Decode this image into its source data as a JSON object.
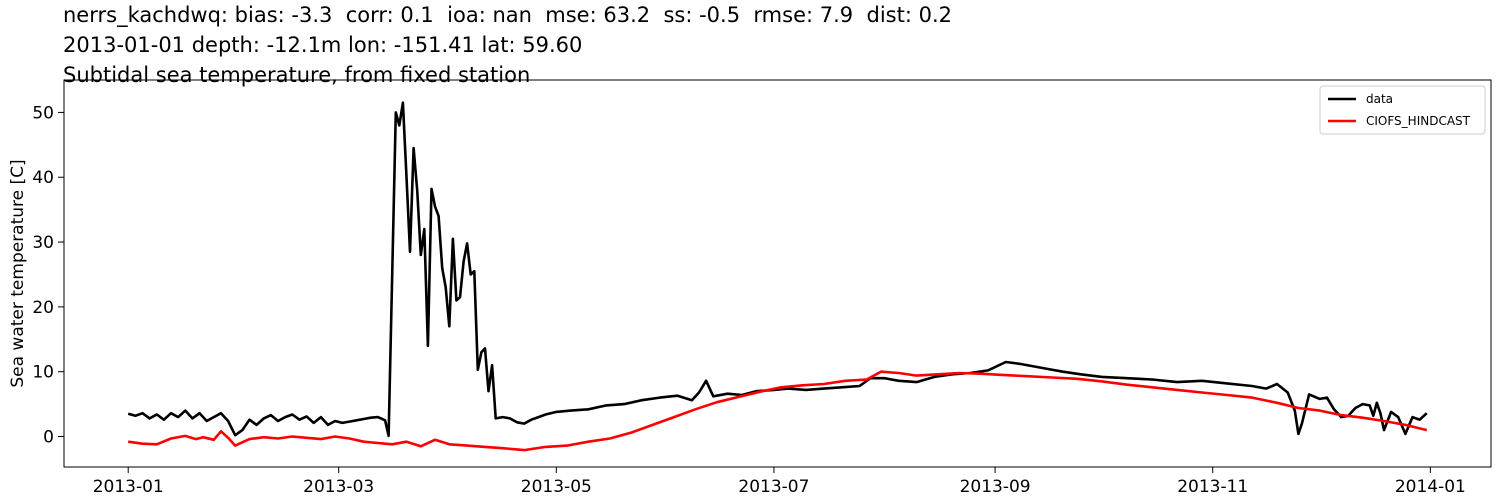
{
  "chart_data": {
    "type": "line",
    "title_lines": [
      "nerrs_kachdwq: bias: -3.3  corr: 0.1  ioa: nan  mse: 63.2  ss: -0.5  rmse: 7.9  dist: 0.2",
      "2013-01-01 depth: -12.1m lon: -151.41 lat: 59.60",
      "Subtidal sea temperature, from fixed station"
    ],
    "xlabel": "",
    "ylabel": "Sea water temperature [C]",
    "xlim": [
      "2012-12-14",
      "2014-01-18"
    ],
    "ylim": [
      -4.7,
      55
    ],
    "x_ticks": [
      "2013-01",
      "2013-03",
      "2013-05",
      "2013-07",
      "2013-09",
      "2013-11",
      "2014-01"
    ],
    "y_ticks": [
      0,
      10,
      20,
      30,
      40,
      50
    ],
    "grid": false,
    "legend": {
      "placement": "top-right"
    },
    "series": [
      {
        "name": "data",
        "color": "#000000",
        "points": [
          [
            "2013-01-01",
            3.5
          ],
          [
            "2013-01-03",
            3.2
          ],
          [
            "2013-01-05",
            3.6
          ],
          [
            "2013-01-07",
            2.8
          ],
          [
            "2013-01-09",
            3.4
          ],
          [
            "2013-01-11",
            2.6
          ],
          [
            "2013-01-13",
            3.6
          ],
          [
            "2013-01-15",
            3.0
          ],
          [
            "2013-01-17",
            4.0
          ],
          [
            "2013-01-19",
            2.8
          ],
          [
            "2013-01-21",
            3.6
          ],
          [
            "2013-01-23",
            2.4
          ],
          [
            "2013-01-25",
            3.0
          ],
          [
            "2013-01-27",
            3.6
          ],
          [
            "2013-01-29",
            2.4
          ],
          [
            "2013-01-31",
            0.2
          ],
          [
            "2013-02-02",
            1.0
          ],
          [
            "2013-02-04",
            2.6
          ],
          [
            "2013-02-06",
            1.8
          ],
          [
            "2013-02-08",
            2.8
          ],
          [
            "2013-02-10",
            3.3
          ],
          [
            "2013-02-12",
            2.4
          ],
          [
            "2013-02-14",
            3.0
          ],
          [
            "2013-02-16",
            3.4
          ],
          [
            "2013-02-18",
            2.6
          ],
          [
            "2013-02-20",
            3.1
          ],
          [
            "2013-02-22",
            2.1
          ],
          [
            "2013-02-24",
            3.0
          ],
          [
            "2013-02-26",
            1.8
          ],
          [
            "2013-02-28",
            2.4
          ],
          [
            "2013-03-02",
            2.1
          ],
          [
            "2013-03-04",
            2.3
          ],
          [
            "2013-03-06",
            2.5
          ],
          [
            "2013-03-08",
            2.7
          ],
          [
            "2013-03-10",
            2.9
          ],
          [
            "2013-03-12",
            3.0
          ],
          [
            "2013-03-14",
            2.5
          ],
          [
            "2013-03-15",
            0.1
          ],
          [
            "2013-03-16",
            25.0
          ],
          [
            "2013-03-17",
            50.0
          ],
          [
            "2013-03-18",
            48.0
          ],
          [
            "2013-03-19",
            51.5
          ],
          [
            "2013-03-20",
            40.0
          ],
          [
            "2013-03-21",
            28.5
          ],
          [
            "2013-03-22",
            44.5
          ],
          [
            "2013-03-23",
            38.0
          ],
          [
            "2013-03-24",
            28.0
          ],
          [
            "2013-03-25",
            32.0
          ],
          [
            "2013-03-26",
            14.0
          ],
          [
            "2013-03-27",
            38.2
          ],
          [
            "2013-03-28",
            35.5
          ],
          [
            "2013-03-29",
            34.0
          ],
          [
            "2013-03-30",
            26.0
          ],
          [
            "2013-03-31",
            23.0
          ],
          [
            "2013-04-01",
            17.0
          ],
          [
            "2013-04-02",
            30.5
          ],
          [
            "2013-04-03",
            21.0
          ],
          [
            "2013-04-04",
            21.5
          ],
          [
            "2013-04-05",
            27.0
          ],
          [
            "2013-04-06",
            29.8
          ],
          [
            "2013-04-07",
            25.0
          ],
          [
            "2013-04-08",
            25.5
          ],
          [
            "2013-04-09",
            10.3
          ],
          [
            "2013-04-10",
            13.0
          ],
          [
            "2013-04-11",
            13.6
          ],
          [
            "2013-04-12",
            7.0
          ],
          [
            "2013-04-13",
            11.0
          ],
          [
            "2013-04-14",
            2.8
          ],
          [
            "2013-04-16",
            3.0
          ],
          [
            "2013-04-18",
            2.8
          ],
          [
            "2013-04-20",
            2.2
          ],
          [
            "2013-04-22",
            2.0
          ],
          [
            "2013-04-24",
            2.6
          ],
          [
            "2013-04-26",
            3.0
          ],
          [
            "2013-04-28",
            3.4
          ],
          [
            "2013-05-01",
            3.8
          ],
          [
            "2013-05-05",
            4.0
          ],
          [
            "2013-05-10",
            4.2
          ],
          [
            "2013-05-15",
            4.8
          ],
          [
            "2013-05-20",
            5.0
          ],
          [
            "2013-05-25",
            5.6
          ],
          [
            "2013-05-30",
            6.0
          ],
          [
            "2013-06-04",
            6.3
          ],
          [
            "2013-06-08",
            5.6
          ],
          [
            "2013-06-10",
            6.8
          ],
          [
            "2013-06-12",
            8.6
          ],
          [
            "2013-06-14",
            6.2
          ],
          [
            "2013-06-18",
            6.6
          ],
          [
            "2013-06-22",
            6.4
          ],
          [
            "2013-06-26",
            7.0
          ],
          [
            "2013-07-01",
            7.2
          ],
          [
            "2013-07-05",
            7.4
          ],
          [
            "2013-07-10",
            7.2
          ],
          [
            "2013-07-15",
            7.4
          ],
          [
            "2013-07-20",
            7.6
          ],
          [
            "2013-07-25",
            7.8
          ],
          [
            "2013-07-28",
            9.0
          ],
          [
            "2013-08-01",
            9.0
          ],
          [
            "2013-08-05",
            8.6
          ],
          [
            "2013-08-10",
            8.4
          ],
          [
            "2013-08-15",
            9.2
          ],
          [
            "2013-08-20",
            9.6
          ],
          [
            "2013-08-25",
            9.8
          ],
          [
            "2013-08-30",
            10.2
          ],
          [
            "2013-09-04",
            11.5
          ],
          [
            "2013-09-08",
            11.2
          ],
          [
            "2013-09-12",
            10.8
          ],
          [
            "2013-09-16",
            10.4
          ],
          [
            "2013-09-20",
            10.0
          ],
          [
            "2013-09-25",
            9.6
          ],
          [
            "2013-10-01",
            9.2
          ],
          [
            "2013-10-08",
            9.0
          ],
          [
            "2013-10-15",
            8.8
          ],
          [
            "2013-10-22",
            8.4
          ],
          [
            "2013-10-29",
            8.6
          ],
          [
            "2013-11-05",
            8.2
          ],
          [
            "2013-11-12",
            7.8
          ],
          [
            "2013-11-16",
            7.4
          ],
          [
            "2013-11-19",
            8.1
          ],
          [
            "2013-11-22",
            6.8
          ],
          [
            "2013-11-24",
            4.0
          ],
          [
            "2013-11-25",
            0.4
          ],
          [
            "2013-11-26",
            2.0
          ],
          [
            "2013-11-28",
            6.5
          ],
          [
            "2013-12-01",
            5.8
          ],
          [
            "2013-12-03",
            6.0
          ],
          [
            "2013-12-05",
            4.2
          ],
          [
            "2013-12-07",
            3.0
          ],
          [
            "2013-12-09",
            3.2
          ],
          [
            "2013-12-11",
            4.4
          ],
          [
            "2013-12-13",
            5.0
          ],
          [
            "2013-12-15",
            4.8
          ],
          [
            "2013-12-16",
            3.2
          ],
          [
            "2013-12-17",
            5.2
          ],
          [
            "2013-12-18",
            3.6
          ],
          [
            "2013-12-19",
            1.0
          ],
          [
            "2013-12-21",
            3.8
          ],
          [
            "2013-12-23",
            3.0
          ],
          [
            "2013-12-25",
            0.4
          ],
          [
            "2013-12-27",
            3.0
          ],
          [
            "2013-12-29",
            2.6
          ],
          [
            "2013-12-31",
            3.6
          ]
        ]
      },
      {
        "name": "CIOFS_HINDCAST",
        "color": "#ff0000",
        "points": [
          [
            "2013-01-01",
            -0.8
          ],
          [
            "2013-01-05",
            -1.1
          ],
          [
            "2013-01-09",
            -1.2
          ],
          [
            "2013-01-13",
            -0.3
          ],
          [
            "2013-01-17",
            0.1
          ],
          [
            "2013-01-20",
            -0.4
          ],
          [
            "2013-01-22",
            -0.1
          ],
          [
            "2013-01-25",
            -0.5
          ],
          [
            "2013-01-27",
            0.8
          ],
          [
            "2013-01-29",
            -0.2
          ],
          [
            "2013-01-31",
            -1.4
          ],
          [
            "2013-02-04",
            -0.4
          ],
          [
            "2013-02-08",
            -0.1
          ],
          [
            "2013-02-12",
            -0.3
          ],
          [
            "2013-02-16",
            0.0
          ],
          [
            "2013-02-20",
            -0.2
          ],
          [
            "2013-02-24",
            -0.4
          ],
          [
            "2013-02-28",
            0.0
          ],
          [
            "2013-03-04",
            -0.3
          ],
          [
            "2013-03-08",
            -0.8
          ],
          [
            "2013-03-12",
            -1.0
          ],
          [
            "2013-03-16",
            -1.2
          ],
          [
            "2013-03-20",
            -0.8
          ],
          [
            "2013-03-24",
            -1.5
          ],
          [
            "2013-03-28",
            -0.5
          ],
          [
            "2013-04-01",
            -1.2
          ],
          [
            "2013-04-06",
            -1.4
          ],
          [
            "2013-04-11",
            -1.6
          ],
          [
            "2013-04-16",
            -1.8
          ],
          [
            "2013-04-22",
            -2.1
          ],
          [
            "2013-04-28",
            -1.6
          ],
          [
            "2013-05-04",
            -1.4
          ],
          [
            "2013-05-10",
            -0.8
          ],
          [
            "2013-05-16",
            -0.3
          ],
          [
            "2013-05-22",
            0.6
          ],
          [
            "2013-05-28",
            1.8
          ],
          [
            "2013-06-03",
            3.0
          ],
          [
            "2013-06-09",
            4.2
          ],
          [
            "2013-06-15",
            5.3
          ],
          [
            "2013-06-21",
            6.1
          ],
          [
            "2013-06-27",
            6.9
          ],
          [
            "2013-07-03",
            7.6
          ],
          [
            "2013-07-09",
            7.9
          ],
          [
            "2013-07-15",
            8.1
          ],
          [
            "2013-07-21",
            8.6
          ],
          [
            "2013-07-27",
            8.8
          ],
          [
            "2013-07-31",
            10.0
          ],
          [
            "2013-08-05",
            9.8
          ],
          [
            "2013-08-10",
            9.4
          ],
          [
            "2013-08-16",
            9.6
          ],
          [
            "2013-08-22",
            9.8
          ],
          [
            "2013-08-28",
            9.7
          ],
          [
            "2013-09-03",
            9.5
          ],
          [
            "2013-09-10",
            9.3
          ],
          [
            "2013-09-17",
            9.1
          ],
          [
            "2013-09-24",
            8.9
          ],
          [
            "2013-10-01",
            8.5
          ],
          [
            "2013-10-08",
            8.0
          ],
          [
            "2013-10-15",
            7.6
          ],
          [
            "2013-10-22",
            7.2
          ],
          [
            "2013-10-29",
            6.8
          ],
          [
            "2013-11-05",
            6.4
          ],
          [
            "2013-11-12",
            6.0
          ],
          [
            "2013-11-19",
            5.2
          ],
          [
            "2013-11-25",
            4.4
          ],
          [
            "2013-12-01",
            4.0
          ],
          [
            "2013-12-07",
            3.3
          ],
          [
            "2013-12-13",
            2.9
          ],
          [
            "2013-12-19",
            2.4
          ],
          [
            "2013-12-25",
            1.8
          ],
          [
            "2013-12-31",
            1.0
          ]
        ]
      }
    ]
  }
}
